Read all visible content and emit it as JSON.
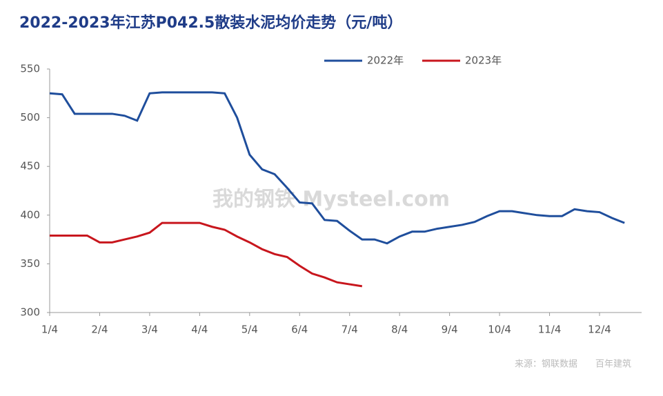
{
  "chart_data": {
    "type": "line",
    "title": "2022-2023年江苏P042.5散装水泥均价走势（元/吨）",
    "source": "来源：钢联数据　　百年建筑",
    "watermark": "我的钢铁 Mysteel.com",
    "categories": [
      "1/4",
      null,
      null,
      null,
      "2/4",
      null,
      null,
      null,
      "3/4",
      null,
      null,
      null,
      "4/4",
      null,
      null,
      null,
      "5/4",
      null,
      null,
      null,
      "6/4",
      null,
      null,
      null,
      "7/4",
      null,
      null,
      null,
      "8/4",
      null,
      null,
      null,
      "9/4",
      null,
      null,
      null,
      "10/4",
      null,
      null,
      null,
      "11/4",
      null,
      null,
      null,
      "12/4",
      null,
      null
    ],
    "series": [
      {
        "name": "2022年",
        "color": "#1f4e9c",
        "values": [
          525,
          524,
          504,
          504,
          504,
          504,
          502,
          497,
          525,
          526,
          526,
          526,
          526,
          526,
          525,
          500,
          462,
          447,
          442,
          428,
          413,
          412,
          395,
          394,
          384,
          375,
          375,
          371,
          378,
          383,
          383,
          386,
          388,
          390,
          393,
          399,
          404,
          404,
          402,
          400,
          399,
          399,
          406,
          404,
          403,
          397,
          392
        ]
      },
      {
        "name": "2023年",
        "color": "#c8161d",
        "values": [
          379,
          379,
          379,
          379,
          372,
          372,
          375,
          378,
          382,
          392,
          392,
          392,
          392,
          388,
          385,
          378,
          372,
          365,
          360,
          357,
          348,
          340,
          336,
          331,
          329,
          327,
          null,
          null,
          null,
          null,
          null,
          null,
          null,
          null,
          null,
          null,
          null,
          null,
          null,
          null,
          null,
          null,
          null,
          null,
          null,
          null,
          null
        ]
      }
    ],
    "ylim": [
      300,
      550
    ],
    "yticks": [
      300,
      350,
      400,
      450,
      500,
      550
    ],
    "grid": false,
    "legend": "top-right"
  }
}
